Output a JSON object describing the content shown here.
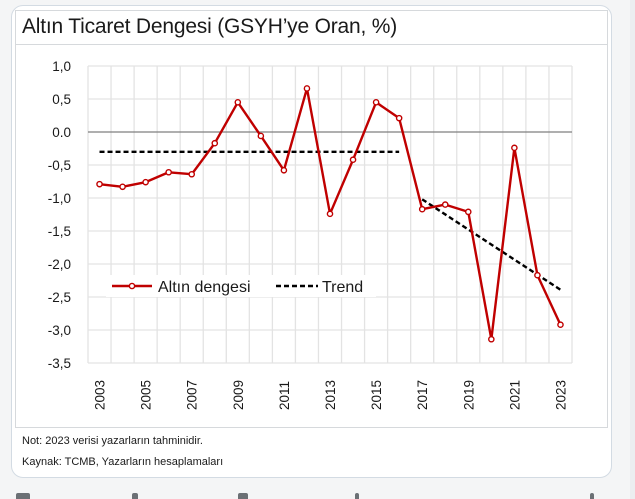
{
  "title": "Altın Ticaret Dengesi (GSYH’ye Oran, %)",
  "notes": {
    "note": "Not: 2023 verisi yazarların tahminidir.",
    "source": "Kaynak: TCMB, Yazarların hesaplamaları"
  },
  "colors": {
    "series_line": "#C00000",
    "trend_line": "#000000",
    "zero_line": "#7f7f7f",
    "grid": "#e3e3e3"
  },
  "chart_data": {
    "type": "line",
    "title": "Altın Ticaret Dengesi (GSYH’ye Oran, %)",
    "xlabel": "",
    "ylabel": "",
    "ylim": [
      -3.5,
      1.0
    ],
    "grid": true,
    "legend_position": "lower-left",
    "x": [
      "2003",
      "2004",
      "2005",
      "2006",
      "2007",
      "2008",
      "2009",
      "2010",
      "2011",
      "2012",
      "2013",
      "2014",
      "2015",
      "2016",
      "2017",
      "2018",
      "2019",
      "2020",
      "2021",
      "2022",
      "2023"
    ],
    "x_tick_labels": [
      "2003",
      "2005",
      "2007",
      "2009",
      "2011",
      "2013",
      "2015",
      "2017",
      "2019",
      "2021",
      "2023"
    ],
    "y_tick_labels": [
      "1,0",
      "0,5",
      "0.0",
      "-0,5",
      "-1,0",
      "-1,5",
      "-2,0",
      "-2,5",
      "-3,0",
      "-3,5"
    ],
    "y_ticks": [
      1.0,
      0.5,
      0.0,
      -0.5,
      -1.0,
      -1.5,
      -2.0,
      -2.5,
      -3.0,
      -3.5
    ],
    "series": [
      {
        "name": "Altın dengesi",
        "style": "line-with-markers",
        "values": [
          -0.79,
          -0.83,
          -0.76,
          -0.61,
          -0.64,
          -0.17,
          0.45,
          -0.06,
          -0.58,
          0.66,
          -1.24,
          -0.42,
          0.45,
          0.21,
          -1.17,
          -1.1,
          -1.21,
          -3.14,
          -0.24,
          -2.17,
          -2.92
        ]
      },
      {
        "name": "Trend",
        "style": "dashed",
        "segments": [
          {
            "x_start": "2003",
            "x_end": "2016",
            "y_start": -0.3,
            "y_end": -0.3
          },
          {
            "x_start": "2017",
            "x_end": "2023",
            "y_start": -1.02,
            "y_end": -2.39
          }
        ]
      }
    ],
    "legend": [
      "Altın dengesi",
      "Trend"
    ]
  }
}
